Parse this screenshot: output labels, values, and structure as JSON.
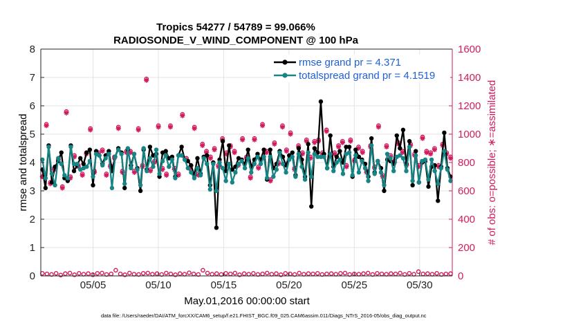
{
  "chart_data": {
    "type": "line",
    "title_line1": "Tropics 54277 / 54789 = 99.066%",
    "title_line2": "RADIOSONDE_V_WIND_COMPONENT @ 100 hPa",
    "xlabel": "May.01,2016 00:00:00 start",
    "ylabel_left": "rmse and totalspread",
    "ylabel_right": "# of obs: o=possible; ∗=assimilated",
    "xlim": [
      0,
      31.5
    ],
    "ylim_left": [
      0,
      8
    ],
    "ylim_right": [
      0,
      1600
    ],
    "x_tick_values": [
      4,
      9,
      14,
      19,
      24,
      29
    ],
    "x_tick_labels": [
      "05/05",
      "05/10",
      "05/15",
      "05/20",
      "05/25",
      "05/30"
    ],
    "y_left_ticks": [
      "0",
      "1",
      "2",
      "3",
      "4",
      "5",
      "6",
      "7",
      "8"
    ],
    "y_right_ticks": [
      "0",
      "200",
      "400",
      "600",
      "800",
      "1000",
      "1200",
      "1400",
      "1600"
    ],
    "grid": true,
    "legend_position": "top-right",
    "colors": {
      "rmse": "#000000",
      "spread": "#178585",
      "obs": "#d21a5e",
      "legend_text": "#1f5fd6"
    },
    "series": [
      {
        "name": "rmse grand pr = 4.371",
        "color": "#000000",
        "values": [
          3.75,
          3.1,
          4.6,
          3.3,
          3.85,
          4.05,
          4.35,
          3.45,
          3.35,
          4.6,
          3.7,
          3.9,
          4.15,
          3.95,
          4.35,
          4.45,
          3.2,
          4.4,
          4.25,
          3.95,
          4.25,
          4.4,
          3.7,
          4.2,
          4.5,
          4.35,
          3.1,
          4.45,
          3.9,
          4.3,
          3.8,
          3.0,
          4.45,
          3.75,
          4.55,
          4.25,
          4.3,
          3.5,
          4.35,
          4.4,
          4.15,
          4.2,
          3.5,
          4.25,
          4.55,
          4.1,
          4.05,
          3.9,
          3.55,
          4.15,
          3.6,
          4.2,
          4.25,
          3.2,
          4.0,
          1.7,
          4.1,
          4.75,
          3.7,
          4.6,
          3.75,
          3.85,
          4.15,
          4.1,
          3.95,
          4.45,
          3.85,
          4.1,
          4.3,
          4.1,
          4.45,
          3.4,
          4.45,
          3.8,
          3.95,
          4.4,
          4.2,
          3.9,
          4.25,
          4.35,
          3.55,
          4.5,
          4.1,
          3.5,
          4.65,
          2.45,
          4.5,
          4.35,
          6.15,
          4.3,
          3.8,
          4.95,
          3.85,
          4.2,
          4.4,
          4.0,
          4.55,
          4.55,
          3.5,
          4.45,
          4.2,
          4.1,
          3.95,
          3.5,
          4.85,
          3.65,
          4.05,
          3.8,
          3.0,
          4.1,
          4.05,
          3.95,
          4.95,
          4.5,
          5.15,
          3.95,
          4.75,
          3.2,
          4.4,
          3.3,
          4.0,
          4.05,
          3.15,
          3.85,
          3.9,
          2.65,
          3.85,
          5.05,
          3.8,
          3.5
        ]
      },
      {
        "name": "totalspread grand pr = 4.1519",
        "color": "#178585",
        "values": [
          4.1,
          3.45,
          4.55,
          3.6,
          3.2,
          4.15,
          3.95,
          3.55,
          3.45,
          4.55,
          3.95,
          3.95,
          3.75,
          3.8,
          3.85,
          4.05,
          3.5,
          4.3,
          4.25,
          3.9,
          4.15,
          4.3,
          3.1,
          4.2,
          4.45,
          4.3,
          3.25,
          4.5,
          3.8,
          4.3,
          3.75,
          3.2,
          4.5,
          3.7,
          4.15,
          3.85,
          4.45,
          3.6,
          4.05,
          4.25,
          3.85,
          4.1,
          3.45,
          4.25,
          4.25,
          4.1,
          3.8,
          3.65,
          3.45,
          3.8,
          3.55,
          4.15,
          3.95,
          3.05,
          3.95,
          3.0,
          4.0,
          3.8,
          3.35,
          3.95,
          3.3,
          3.65,
          3.95,
          4.05,
          3.8,
          4.15,
          3.65,
          3.95,
          4.2,
          3.95,
          4.2,
          3.45,
          4.2,
          3.5,
          3.75,
          4.35,
          3.95,
          3.65,
          4.1,
          4.2,
          3.5,
          4.3,
          3.85,
          3.4,
          4.35,
          3.5,
          4.3,
          4.2,
          4.2,
          4.2,
          3.8,
          4.3,
          3.7,
          4.0,
          4.1,
          3.6,
          4.3,
          4.35,
          3.55,
          4.25,
          3.65,
          4.05,
          3.8,
          3.35,
          4.6,
          3.6,
          4.05,
          3.65,
          3.2,
          4.3,
          4.15,
          3.7,
          4.2,
          4.25,
          4.15,
          3.7,
          4.55,
          3.35,
          4.25,
          3.3,
          4.05,
          4.1,
          3.4,
          4.1,
          3.7,
          3.25,
          3.8,
          4.4,
          3.75,
          3.35
        ]
      },
      {
        "name": "obs_possible",
        "marker": "circle",
        "color": "#d21a5e",
        "values": [
          700,
          1070,
          660,
          760,
          830,
          630,
          1160,
          700,
          850,
          780,
          720,
          870,
          1040,
          740,
          870,
          890,
          720,
          780,
          840,
          1050,
          740,
          880,
          880,
          740,
          1040,
          780,
          1390,
          750,
          810,
          1060,
          760,
          720,
          1060,
          760,
          720,
          1140,
          830,
          770,
          1050,
          720,
          930,
          880,
          840,
          900,
          780,
          970,
          870,
          920,
          880,
          790,
          970,
          840,
          700,
          970,
          770,
          1070,
          880,
          680,
          940,
          800,
          1060,
          890,
          1010,
          760,
          920,
          870,
          960,
          840,
          950,
          960,
          870,
          1030,
          860,
          870,
          920,
          950,
          780,
          960,
          820,
          910,
          880,
          740,
          920,
          770,
          1060,
          710,
          920,
          850,
          810,
          940,
          880,
          790,
          930,
          860,
          780,
          980,
          880,
          870,
          900,
          780,
          930,
          870,
          840
        ]
      },
      {
        "name": "obs_assimilated",
        "marker": "star",
        "color": "#d21a5e",
        "values": [
          700,
          1060,
          650,
          750,
          820,
          620,
          1150,
          690,
          840,
          770,
          710,
          860,
          1030,
          730,
          860,
          880,
          710,
          770,
          830,
          1040,
          730,
          870,
          870,
          730,
          1030,
          770,
          1380,
          740,
          800,
          1050,
          750,
          710,
          1050,
          750,
          710,
          1130,
          820,
          760,
          1040,
          710,
          920,
          870,
          830,
          890,
          770,
          960,
          860,
          910,
          870,
          780,
          960,
          830,
          690,
          960,
          760,
          1060,
          870,
          670,
          930,
          790,
          1050,
          880,
          1000,
          750,
          910,
          860,
          950,
          830,
          940,
          950,
          860,
          1020,
          850,
          860,
          910,
          940,
          770,
          950,
          810,
          900,
          870,
          730,
          910,
          760,
          1050,
          700,
          910,
          840,
          800,
          930,
          870,
          780,
          920,
          850,
          770,
          970,
          870,
          860,
          890,
          770,
          920,
          860,
          830
        ]
      },
      {
        "name": "obs_possible_low",
        "marker": "circle",
        "color": "#d21a5e",
        "values": [
          18,
          14,
          10,
          18,
          6,
          16,
          20,
          8,
          18,
          12,
          16,
          8,
          18,
          20,
          10,
          14,
          40,
          14,
          8,
          20,
          12,
          10,
          18,
          20,
          12,
          16,
          10,
          20,
          14,
          8,
          16,
          12,
          22,
          14,
          10,
          40,
          20,
          12,
          16,
          10,
          18,
          14,
          20,
          8,
          16,
          12,
          18,
          10,
          14,
          20,
          12,
          16,
          8,
          18,
          14,
          10,
          20,
          12,
          16,
          14,
          18,
          10,
          14,
          16,
          12,
          18,
          20,
          10,
          14,
          12,
          16,
          20,
          10,
          18,
          14,
          12,
          16,
          14,
          20,
          10,
          18,
          12,
          30,
          14,
          16,
          12,
          18,
          10,
          14,
          16
        ]
      }
    ]
  },
  "footnote": "data file: /Users/raeder/DAI/ATM_forcXX/CAM6_setup/f.e21.FHIST_BGC.f09_025.CAM6assim.011/Diags_NTrS_2016-05/obs_diag_output.nc"
}
